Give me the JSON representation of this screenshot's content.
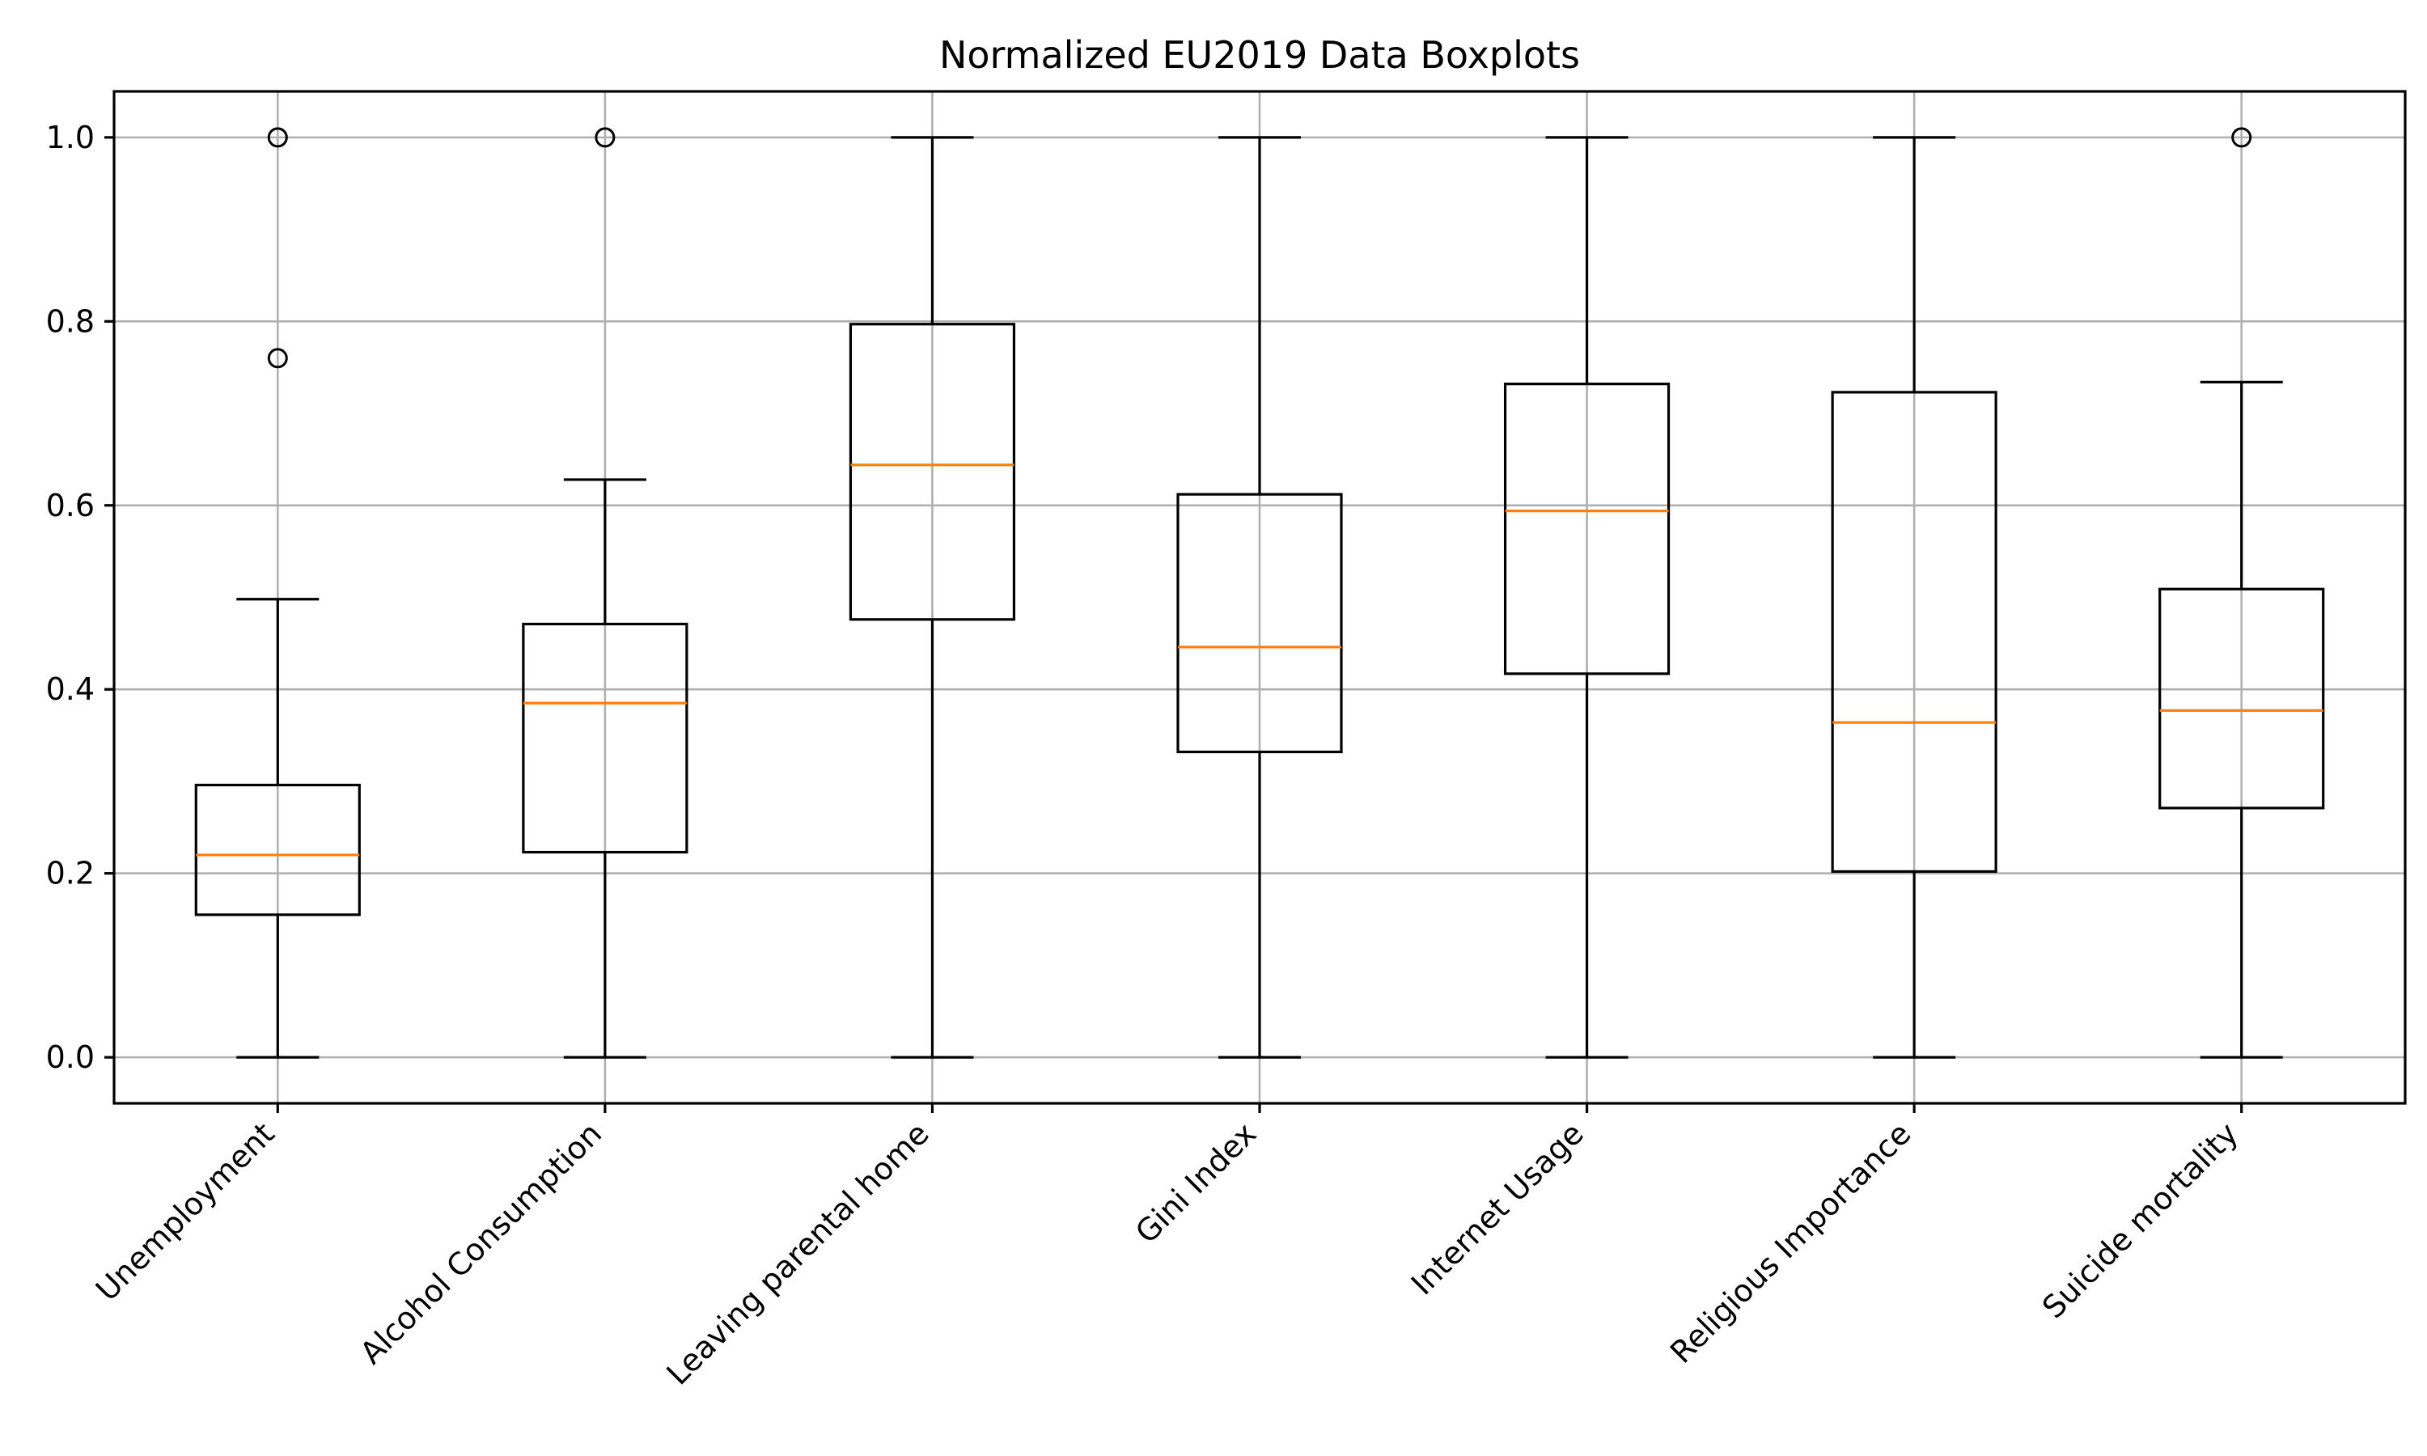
{
  "chart_data": {
    "type": "boxplot",
    "title": "Normalized EU2019 Data Boxplots",
    "xlabel": "",
    "ylabel": "",
    "ylim": [
      -0.05,
      1.05
    ],
    "y_ticks": [
      "0.0",
      "0.2",
      "0.4",
      "0.6",
      "0.8",
      "1.0"
    ],
    "y_tick_values": [
      0.0,
      0.2,
      0.4,
      0.6,
      0.8,
      1.0
    ],
    "grid": true,
    "legend": "none",
    "colors": {
      "box": "#000000",
      "median": "#ff7f0e",
      "grid": "#b0b0b0"
    },
    "categories": [
      "Unemployment",
      "Alcohol Consumption",
      "Leaving parental home",
      "Gini Index",
      "Internet Usage",
      "Religious Importance",
      "Suicide mortality"
    ],
    "boxes": [
      {
        "whisker_low": 0.0,
        "q1": 0.155,
        "median": 0.22,
        "q3": 0.296,
        "whisker_high": 0.498,
        "fliers": [
          0.76,
          1.0
        ]
      },
      {
        "whisker_low": 0.0,
        "q1": 0.223,
        "median": 0.385,
        "q3": 0.471,
        "whisker_high": 0.628,
        "fliers": [
          1.0
        ]
      },
      {
        "whisker_low": 0.0,
        "q1": 0.476,
        "median": 0.644,
        "q3": 0.797,
        "whisker_high": 1.0,
        "fliers": []
      },
      {
        "whisker_low": 0.0,
        "q1": 0.332,
        "median": 0.446,
        "q3": 0.612,
        "whisker_high": 1.0,
        "fliers": []
      },
      {
        "whisker_low": 0.0,
        "q1": 0.417,
        "median": 0.594,
        "q3": 0.732,
        "whisker_high": 1.0,
        "fliers": []
      },
      {
        "whisker_low": 0.0,
        "q1": 0.202,
        "median": 0.364,
        "q3": 0.723,
        "whisker_high": 1.0,
        "fliers": []
      },
      {
        "whisker_low": 0.0,
        "q1": 0.271,
        "median": 0.377,
        "q3": 0.509,
        "whisker_high": 0.734,
        "fliers": [
          1.0
        ]
      }
    ]
  }
}
